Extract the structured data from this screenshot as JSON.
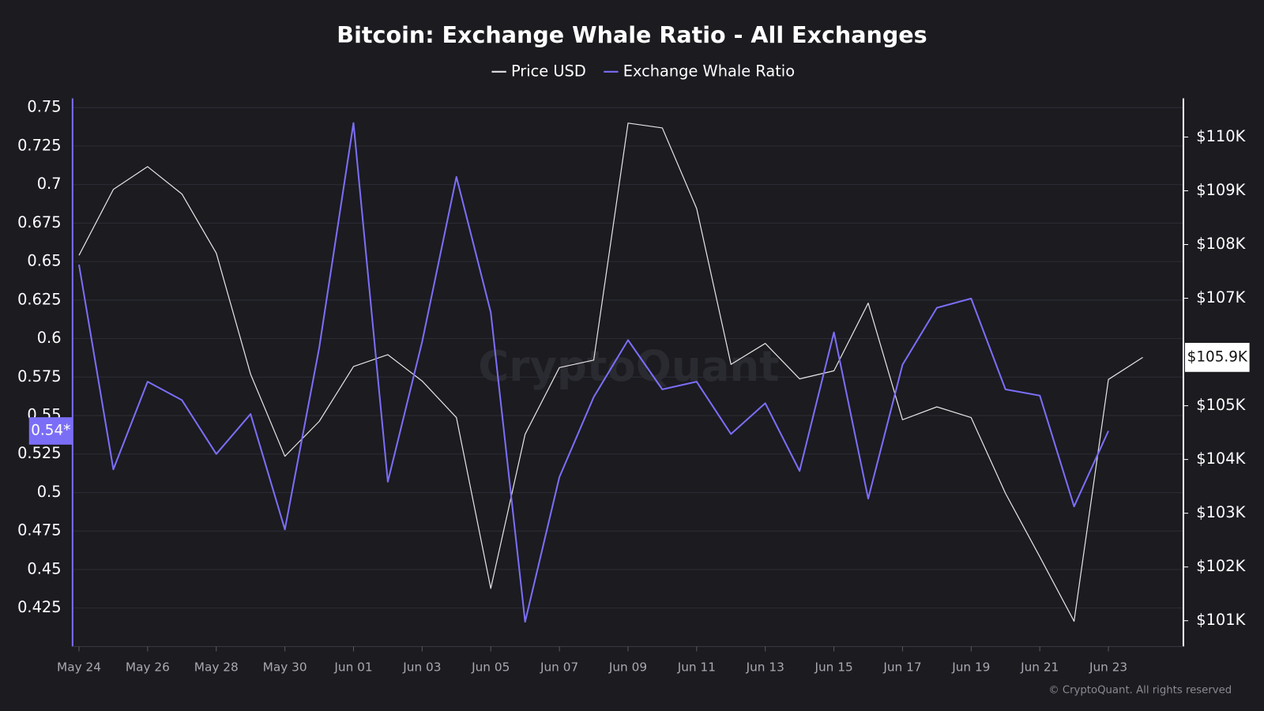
{
  "chart_data": {
    "type": "line",
    "title": "Bitcoin: Exchange Whale Ratio - All Exchanges",
    "watermark": "CryptoQuant",
    "footer": "© CryptoQuant. All rights reserved",
    "x": [
      "May 24",
      null,
      "May 26",
      null,
      "May 28",
      null,
      "May 30",
      null,
      "Jun 01",
      null,
      "Jun 03",
      null,
      "Jun 05",
      null,
      "Jun 07",
      null,
      "Jun 09",
      null,
      "Jun 11",
      null,
      "Jun 13",
      null,
      "Jun 15",
      null,
      "Jun 17",
      null,
      "Jun 19",
      null,
      "Jun 21",
      null,
      "Jun 23",
      null
    ],
    "series": [
      {
        "name": "Price USD",
        "color": "#e4e4e4",
        "axis": "y2",
        "values": [
          107800,
          109025,
          109450,
          108940,
          107840,
          105590,
          104060,
          104710,
          105730,
          105950,
          105460,
          104780,
          101600,
          104470,
          105710,
          105850,
          110260,
          110170,
          108670,
          105770,
          106160,
          105500,
          105650,
          106910,
          104740,
          104980,
          104780,
          103370,
          102190,
          100990,
          105490,
          105900
        ],
        "value_labels": [
          null,
          null,
          null,
          null,
          null,
          null,
          null,
          null,
          null,
          null,
          null,
          null,
          null,
          null,
          null,
          null,
          null,
          null,
          null,
          null,
          null,
          null,
          null,
          null,
          null,
          null,
          null,
          null,
          null,
          null,
          null,
          "$105.9K"
        ]
      },
      {
        "name": "Exchange Whale Ratio",
        "color": "#7b6ef6",
        "values": [
          0.648,
          0.515,
          0.572,
          0.56,
          0.525,
          0.551,
          0.476,
          0.594,
          0.74,
          0.507,
          0.598,
          0.705,
          0.617,
          0.416,
          0.51,
          0.562,
          0.599,
          0.567,
          0.572,
          0.538,
          0.558,
          0.514,
          0.604,
          0.496,
          0.583,
          0.62,
          0.626,
          0.567,
          0.563,
          0.491,
          0.54,
          null
        ],
        "value_labels": [
          null,
          null,
          null,
          null,
          null,
          null,
          null,
          null,
          null,
          null,
          null,
          null,
          null,
          null,
          null,
          null,
          null,
          null,
          null,
          null,
          null,
          null,
          null,
          null,
          null,
          null,
          null,
          null,
          null,
          null,
          "0.54*",
          null
        ]
      }
    ],
    "ylim": [
      0.4,
      0.756
    ],
    "yticks": [
      0.75,
      0.725,
      0.7,
      0.675,
      0.65,
      0.625,
      0.6,
      0.575,
      0.55,
      0.525,
      0.5,
      0.475,
      0.45,
      0.425
    ],
    "y2lim": [
      100520,
      110720
    ],
    "y2ticks": [
      {
        "value": 110000,
        "label": "$110K"
      },
      {
        "value": 109000,
        "label": "$109K"
      },
      {
        "value": 108000,
        "label": "$108K"
      },
      {
        "value": 107000,
        "label": "$107K"
      },
      {
        "value": 105000,
        "label": "$105K"
      },
      {
        "value": 104000,
        "label": "$104K"
      },
      {
        "value": 103000,
        "label": "$103K"
      },
      {
        "value": 102000,
        "label": "$102K"
      },
      {
        "value": 101000,
        "label": "$101K"
      }
    ],
    "grid": true,
    "legend": "top"
  }
}
